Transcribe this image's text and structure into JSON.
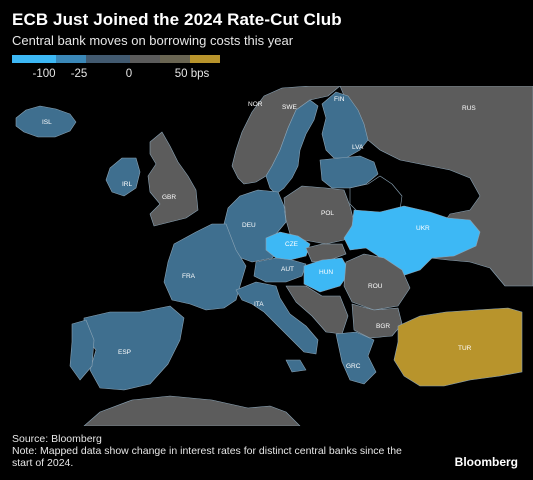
{
  "title": "ECB Just Joined the 2024 Rate-Cut Club",
  "subtitle": "Central bank moves on borrowing costs this year",
  "legend": {
    "ticks": [
      "-100",
      "-25",
      "0",
      "50 bps"
    ],
    "bins": [
      {
        "color": "#3db8f5"
      },
      {
        "color": "#3b88b8"
      },
      {
        "color": "#425a70"
      },
      {
        "color": "#5b5b5b"
      },
      {
        "color": "#6a6552"
      },
      {
        "color": "#b8942c"
      }
    ]
  },
  "colors": {
    "strong_cut": "#3db8f5",
    "moderate_cut": "#3f6f8f",
    "no_change": "#5c5c5c",
    "hike": "#b8942c",
    "no_data": "#000000",
    "border": "#8aa3b5"
  },
  "countries": [
    {
      "code": "ISL",
      "category": "moderate_cut"
    },
    {
      "code": "NOR",
      "category": "no_change"
    },
    {
      "code": "SWE",
      "category": "moderate_cut"
    },
    {
      "code": "FIN",
      "category": "moderate_cut"
    },
    {
      "code": "RUS",
      "category": "no_change"
    },
    {
      "code": "LVA",
      "category": "moderate_cut"
    },
    {
      "code": "IRL",
      "category": "moderate_cut"
    },
    {
      "code": "GBR",
      "category": "no_change"
    },
    {
      "code": "DEU",
      "category": "moderate_cut"
    },
    {
      "code": "POL",
      "category": "no_change"
    },
    {
      "code": "CZE",
      "category": "strong_cut"
    },
    {
      "code": "UKR",
      "category": "strong_cut"
    },
    {
      "code": "FRA",
      "category": "moderate_cut"
    },
    {
      "code": "AUT",
      "category": "moderate_cut"
    },
    {
      "code": "HUN",
      "category": "strong_cut"
    },
    {
      "code": "ROU",
      "category": "no_change"
    },
    {
      "code": "ITA",
      "category": "moderate_cut"
    },
    {
      "code": "BGR",
      "category": "no_change"
    },
    {
      "code": "ESP",
      "category": "moderate_cut"
    },
    {
      "code": "GRC",
      "category": "moderate_cut"
    },
    {
      "code": "TUR",
      "category": "hike"
    }
  ],
  "source": "Source: Bloomberg",
  "note": "Note: Mapped data show change in interest rates for distinct central banks since the start of 2024.",
  "brand": "Bloomberg"
}
